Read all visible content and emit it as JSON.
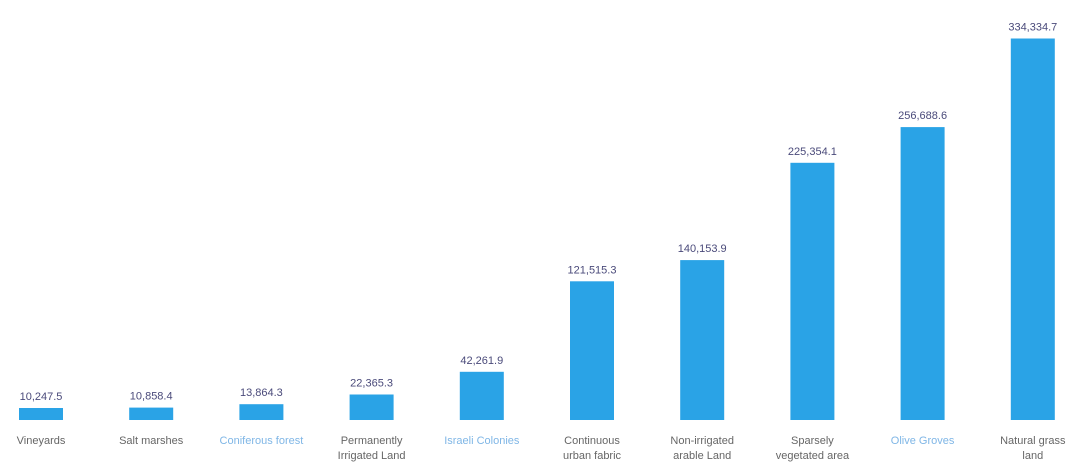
{
  "chart_data": {
    "type": "bar",
    "categories": [
      "Vineyards",
      "Salt marshes",
      "Coniferous forest",
      "Permanently Irrigated Land",
      "Israeli Colonies",
      "Continuous urban fabric",
      "Non-irrigated arable Land",
      "Sparsely vegetated area",
      "Olive Groves",
      "Natural grass land"
    ],
    "category_lines": [
      [
        "Vineyards"
      ],
      [
        "Salt marshes"
      ],
      [
        "Coniferous forest"
      ],
      [
        "Permanently",
        "Irrigated Land"
      ],
      [
        "Israeli Colonies"
      ],
      [
        "Continuous",
        "urban fabric"
      ],
      [
        "Non-irrigated",
        "arable Land"
      ],
      [
        "Sparsely",
        "vegetated area"
      ],
      [
        "Olive Groves"
      ],
      [
        "Natural grass",
        "land"
      ]
    ],
    "values": [
      10247.5,
      10858.4,
      13864.3,
      22365.3,
      42261.9,
      121515.3,
      140153.9,
      225354.1,
      256688.6,
      334334.7
    ],
    "value_labels": [
      "10,247.5",
      "10,858.4",
      "13,864.3",
      "22,365.3",
      "42,261.9",
      "121,515.3",
      "140,153.9",
      "225,354.1",
      "256,688.6",
      "334,334.7"
    ],
    "title": "",
    "xlabel": "",
    "ylabel": "",
    "ylim": [
      0,
      340000
    ],
    "grid": false,
    "legend": "none",
    "bar_color": "#2aa3e6",
    "highlight_label_color": "#7fb6e6",
    "highlighted_categories": [
      "Coniferous forest",
      "Israeli Colonies",
      "Olive Groves"
    ]
  }
}
